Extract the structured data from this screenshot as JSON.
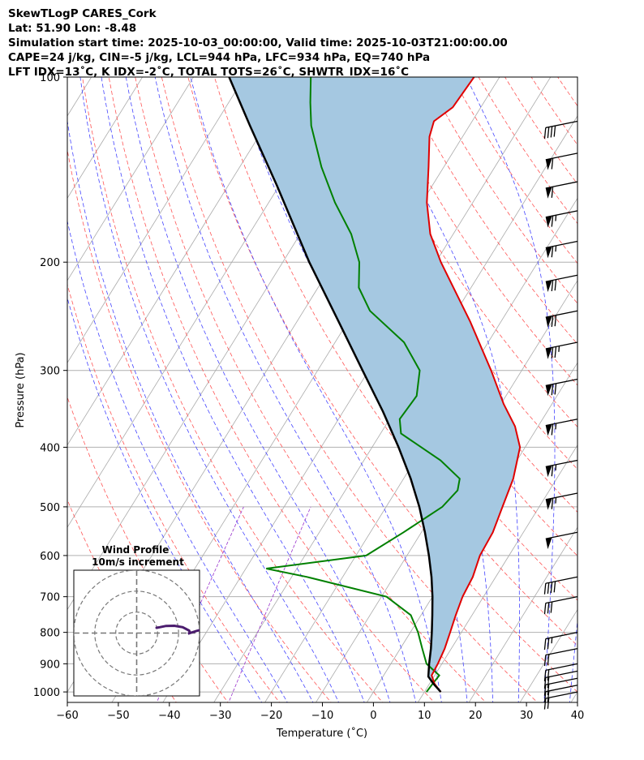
{
  "header": {
    "line1": "SkewTLogP CARES_Cork",
    "line2": "Lat: 51.90   Lon: -8.48",
    "line3": "Simulation start time: 2025-10-03_00:00:00, Valid time: 2025-10-03T21:00:00.00",
    "line4": "CAPE=24 j/kg, CIN=-5 j/kg, LCL=944 hPa, LFC=934 hPa, EQ=740 hPa",
    "line5": "LFT IDX=13˚C, K IDX=-2˚C, TOTAL TOTS=26˚C, SHWTR_IDX=16˚C"
  },
  "chart_data": {
    "type": "line",
    "subtype": "skewt-logp",
    "xlabel": "Temperature (˚C)",
    "ylabel": "Pressure (hPa)",
    "xlim": [
      -60,
      40
    ],
    "ylim": [
      1040,
      100
    ],
    "y_scale": "log",
    "x_ticks": [
      -60,
      -50,
      -40,
      -30,
      -20,
      -10,
      0,
      10,
      20,
      30,
      40
    ],
    "y_ticks": [
      1000,
      900,
      800,
      700,
      600,
      500,
      400,
      300,
      200,
      100
    ],
    "grid": true,
    "colors": {
      "temperature": "#e00000",
      "dewpoint": "#008000",
      "parcel": "#000000",
      "cape_fill": "#a5c8e1",
      "dry_adiabat": "#ff5555",
      "moist_adiabat": "#4444ff",
      "mixing_ratio": "#9933cc",
      "isotherm": "#aaaaaa",
      "hodograph": "#4b1c6e"
    },
    "series": [
      {
        "name": "Temperature",
        "points": [
          [
            1000,
            13.2
          ],
          [
            970,
            11.0
          ],
          [
            940,
            9.4
          ],
          [
            900,
            9.2
          ],
          [
            850,
            8.7
          ],
          [
            800,
            7.8
          ],
          [
            750,
            6.8
          ],
          [
            700,
            5.9
          ],
          [
            650,
            5.5
          ],
          [
            600,
            4.3
          ],
          [
            550,
            4.0
          ],
          [
            500,
            2.8
          ],
          [
            450,
            1.5
          ],
          [
            400,
            -1.0
          ],
          [
            370,
            -4.5
          ],
          [
            340,
            -9.5
          ],
          [
            300,
            -16.0
          ],
          [
            250,
            -26.0
          ],
          [
            200,
            -39.0
          ],
          [
            180,
            -44.5
          ],
          [
            160,
            -49.0
          ],
          [
            140,
            -53.0
          ],
          [
            125,
            -56.5
          ],
          [
            118,
            -57.5
          ],
          [
            112,
            -55.5
          ],
          [
            100,
            -55.0
          ]
        ]
      },
      {
        "name": "Dewpoint",
        "points": [
          [
            1000,
            10.4
          ],
          [
            970,
            10.6
          ],
          [
            940,
            10.9
          ],
          [
            900,
            7.0
          ],
          [
            850,
            4.3
          ],
          [
            800,
            1.5
          ],
          [
            750,
            -2.0
          ],
          [
            700,
            -9.0
          ],
          [
            650,
            -27.0
          ],
          [
            630,
            -36.0
          ],
          [
            600,
            -18.0
          ],
          [
            550,
            -13.5
          ],
          [
            500,
            -9.0
          ],
          [
            470,
            -8.0
          ],
          [
            450,
            -9.0
          ],
          [
            420,
            -15.0
          ],
          [
            380,
            -26.0
          ],
          [
            360,
            -28.0
          ],
          [
            330,
            -27.5
          ],
          [
            300,
            -30.0
          ],
          [
            270,
            -36.5
          ],
          [
            240,
            -47.0
          ],
          [
            220,
            -52.0
          ],
          [
            200,
            -55.0
          ],
          [
            180,
            -60.0
          ],
          [
            160,
            -67.0
          ],
          [
            140,
            -74.0
          ],
          [
            120,
            -81.0
          ],
          [
            110,
            -84.0
          ],
          [
            100,
            -87.0
          ]
        ]
      },
      {
        "name": "Parcel",
        "points": [
          [
            1000,
            13.2
          ],
          [
            970,
            10.8
          ],
          [
            944,
            8.9
          ],
          [
            900,
            7.5
          ],
          [
            850,
            6.0
          ],
          [
            800,
            4.2
          ],
          [
            750,
            2.2
          ],
          [
            700,
            0.0
          ],
          [
            650,
            -2.6
          ],
          [
            600,
            -5.7
          ],
          [
            550,
            -9.3
          ],
          [
            500,
            -13.5
          ],
          [
            450,
            -18.6
          ],
          [
            400,
            -24.8
          ],
          [
            350,
            -32.2
          ],
          [
            300,
            -41.2
          ],
          [
            250,
            -51.8
          ],
          [
            200,
            -64.8
          ],
          [
            150,
            -80.5
          ],
          [
            120,
            -93.0
          ],
          [
            100,
            -103.0
          ]
        ]
      }
    ],
    "wind_barbs": [
      {
        "p": 1000,
        "speed_kt": 20
      },
      {
        "p": 975,
        "speed_kt": 20
      },
      {
        "p": 950,
        "speed_kt": 20
      },
      {
        "p": 925,
        "speed_kt": 20
      },
      {
        "p": 900,
        "speed_kt": 20
      },
      {
        "p": 850,
        "speed_kt": 20
      },
      {
        "p": 800,
        "speed_kt": 25
      },
      {
        "p": 700,
        "speed_kt": 30
      },
      {
        "p": 650,
        "speed_kt": 40
      },
      {
        "p": 550,
        "speed_kt": 50
      },
      {
        "p": 475,
        "speed_kt": 65
      },
      {
        "p": 420,
        "speed_kt": 65
      },
      {
        "p": 360,
        "speed_kt": 65
      },
      {
        "p": 310,
        "speed_kt": 70
      },
      {
        "p": 270,
        "speed_kt": 75
      },
      {
        "p": 240,
        "speed_kt": 70
      },
      {
        "p": 210,
        "speed_kt": 70
      },
      {
        "p": 185,
        "speed_kt": 65
      },
      {
        "p": 165,
        "speed_kt": 65
      },
      {
        "p": 148,
        "speed_kt": 60
      },
      {
        "p": 133,
        "speed_kt": 60
      },
      {
        "p": 118,
        "speed_kt": 40
      }
    ],
    "hodograph": {
      "title": "Wind Profile",
      "subtitle": "10m/s increment",
      "rings_ms": [
        10,
        20,
        30
      ],
      "range_ms": 30,
      "points": [
        [
          9.5,
          2.5
        ],
        [
          11,
          2.8
        ],
        [
          14,
          3.4
        ],
        [
          18,
          3.5
        ],
        [
          22,
          2.8
        ],
        [
          25,
          1.2
        ],
        [
          25.5,
          0.2
        ],
        [
          24.5,
          -0.3
        ],
        [
          26,
          0.2
        ],
        [
          28.5,
          1.0
        ],
        [
          30.5,
          1.5
        ]
      ]
    }
  }
}
